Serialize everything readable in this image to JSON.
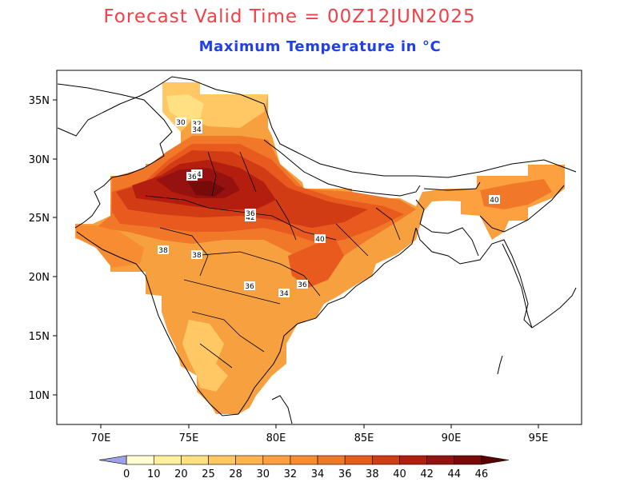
{
  "header": {
    "title": "Forecast Valid Time = 00Z12JUN2025",
    "subtitle": "Maximum Temperature in °C",
    "title_color": "#f04048",
    "subtitle_color": "#2040e8"
  },
  "map": {
    "lon_ticks": [
      "70E",
      "75E",
      "80E",
      "85E",
      "90E",
      "95E"
    ],
    "lat_ticks": [
      "35N",
      "30N",
      "25N",
      "20N",
      "15N",
      "10N"
    ],
    "contour_labels": [
      "30",
      "32",
      "34",
      "44",
      "42",
      "40",
      "38",
      "36",
      "36",
      "40",
      "38",
      "34",
      "36",
      "36"
    ]
  },
  "colorbar": {
    "labels": [
      "0",
      "10",
      "20",
      "25",
      "28",
      "30",
      "32",
      "34",
      "36",
      "38",
      "40",
      "42",
      "44",
      "46"
    ],
    "colors": [
      "#a0a0e6",
      "#ffffd2",
      "#fff0a0",
      "#ffe082",
      "#ffc864",
      "#ffb450",
      "#fca040",
      "#f88c32",
      "#f07828",
      "#e85a1e",
      "#d23c14",
      "#b41e0f",
      "#961210",
      "#780a0a",
      "#5a0000"
    ]
  }
}
